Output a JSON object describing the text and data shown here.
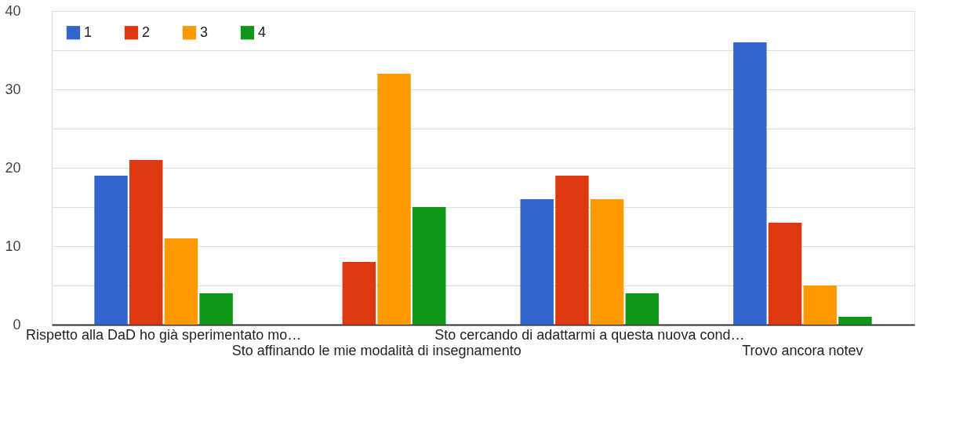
{
  "chart_data": {
    "type": "bar",
    "categories": [
      "Rispetto alla DaD ho già sperimentato mo…",
      "Sto affinando le mie modalità di insegnamento",
      "Sto cercando di adattarmi a questa nuova cond…",
      "Trovo ancora notev"
    ],
    "series": [
      {
        "name": "1",
        "color": "#3366cc",
        "values": [
          19,
          0,
          16,
          36
        ]
      },
      {
        "name": "2",
        "color": "#dc3912",
        "values": [
          21,
          8,
          19,
          13
        ]
      },
      {
        "name": "3",
        "color": "#ff9900",
        "values": [
          11,
          32,
          16,
          5
        ]
      },
      {
        "name": "4",
        "color": "#109618",
        "values": [
          4,
          15,
          4,
          1
        ]
      }
    ],
    "ylim": [
      0,
      40
    ],
    "yticks": [
      0,
      {
        "value": 5,
        "label": null
      },
      10,
      {
        "value": 15,
        "label": null
      },
      20,
      {
        "value": 25,
        "label": null
      },
      30,
      {
        "value": 35,
        "label": null
      },
      40
    ],
    "grid": true,
    "legend": "top left"
  }
}
